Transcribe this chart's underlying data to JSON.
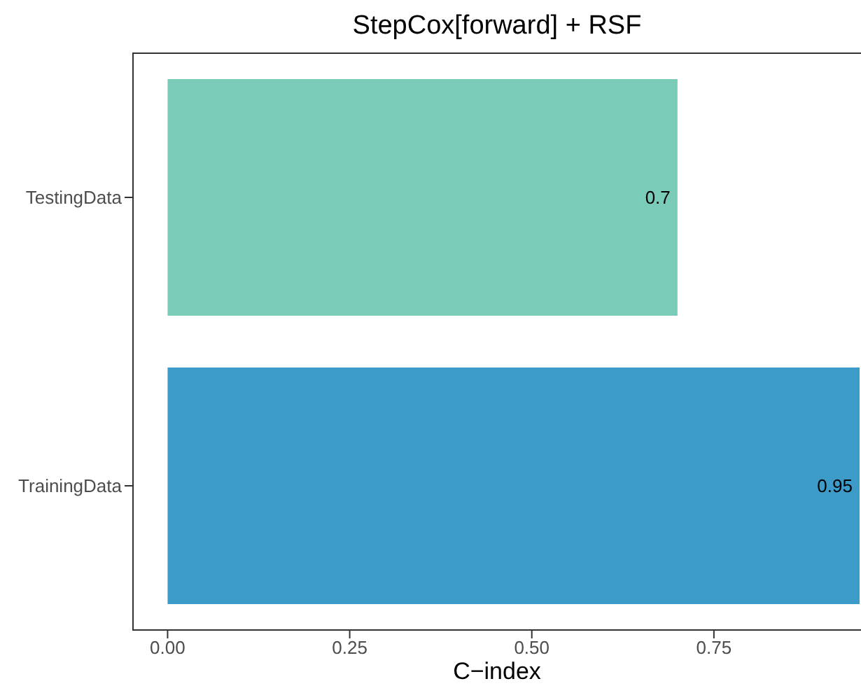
{
  "chart_data": {
    "type": "bar",
    "orientation": "horizontal",
    "title": "StepCox[forward] + RSF",
    "xlabel": "C−index",
    "categories": [
      "TestingData",
      "TrainingData"
    ],
    "values": [
      0.7,
      0.95
    ],
    "colors": [
      "#7accb8",
      "#3d9bc9"
    ],
    "data_labels": true,
    "xlim": [
      -0.0475,
      0.975
    ],
    "xticks": [
      {
        "value": 0,
        "label": "0.00"
      },
      {
        "value": 0.25,
        "label": "0.25"
      },
      {
        "value": 0.5,
        "label": "0.50"
      },
      {
        "value": 0.75,
        "label": "0.75"
      }
    ],
    "grid": false
  }
}
